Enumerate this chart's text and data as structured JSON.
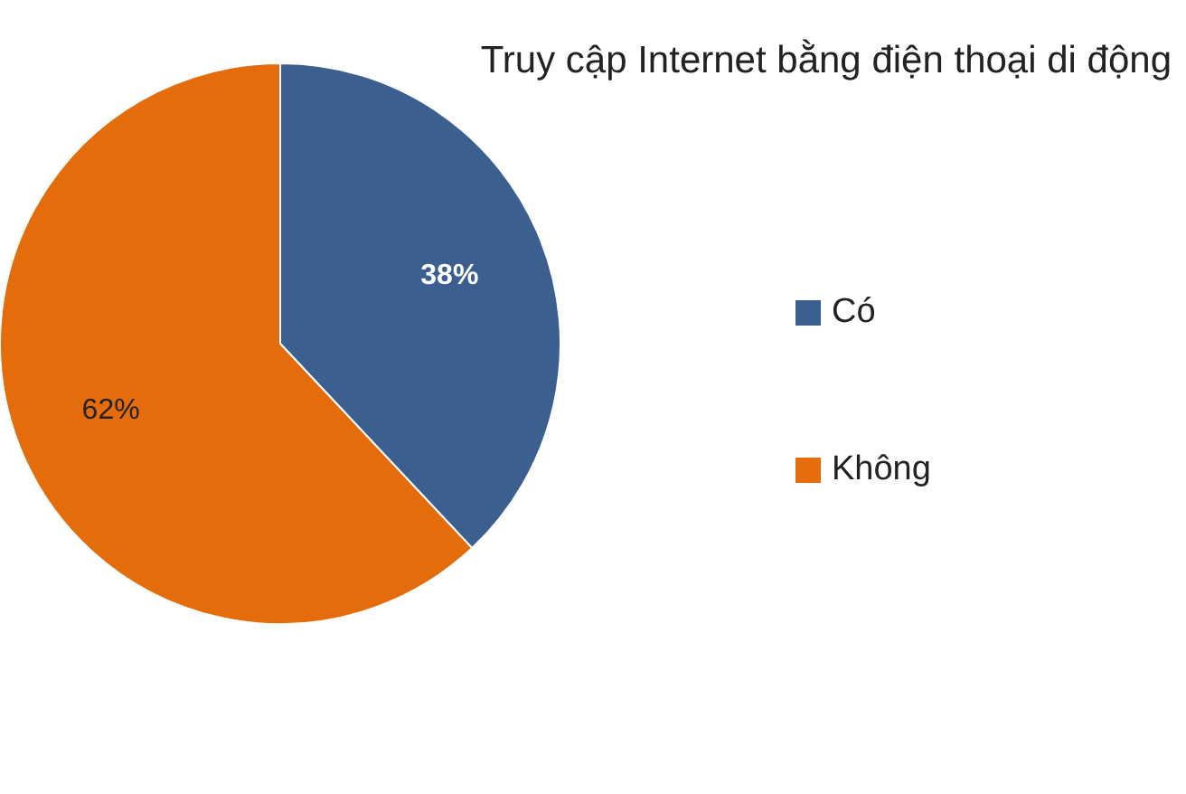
{
  "chart_data": {
    "type": "pie",
    "title": "Truy cập Internet bằng điện thoại di động",
    "categories": [
      "Có",
      "Không"
    ],
    "values": [
      38,
      62
    ],
    "colors": [
      "#3b5f8e",
      "#e46c0a"
    ],
    "value_labels": [
      "38%",
      "62%"
    ],
    "legend": "right"
  }
}
